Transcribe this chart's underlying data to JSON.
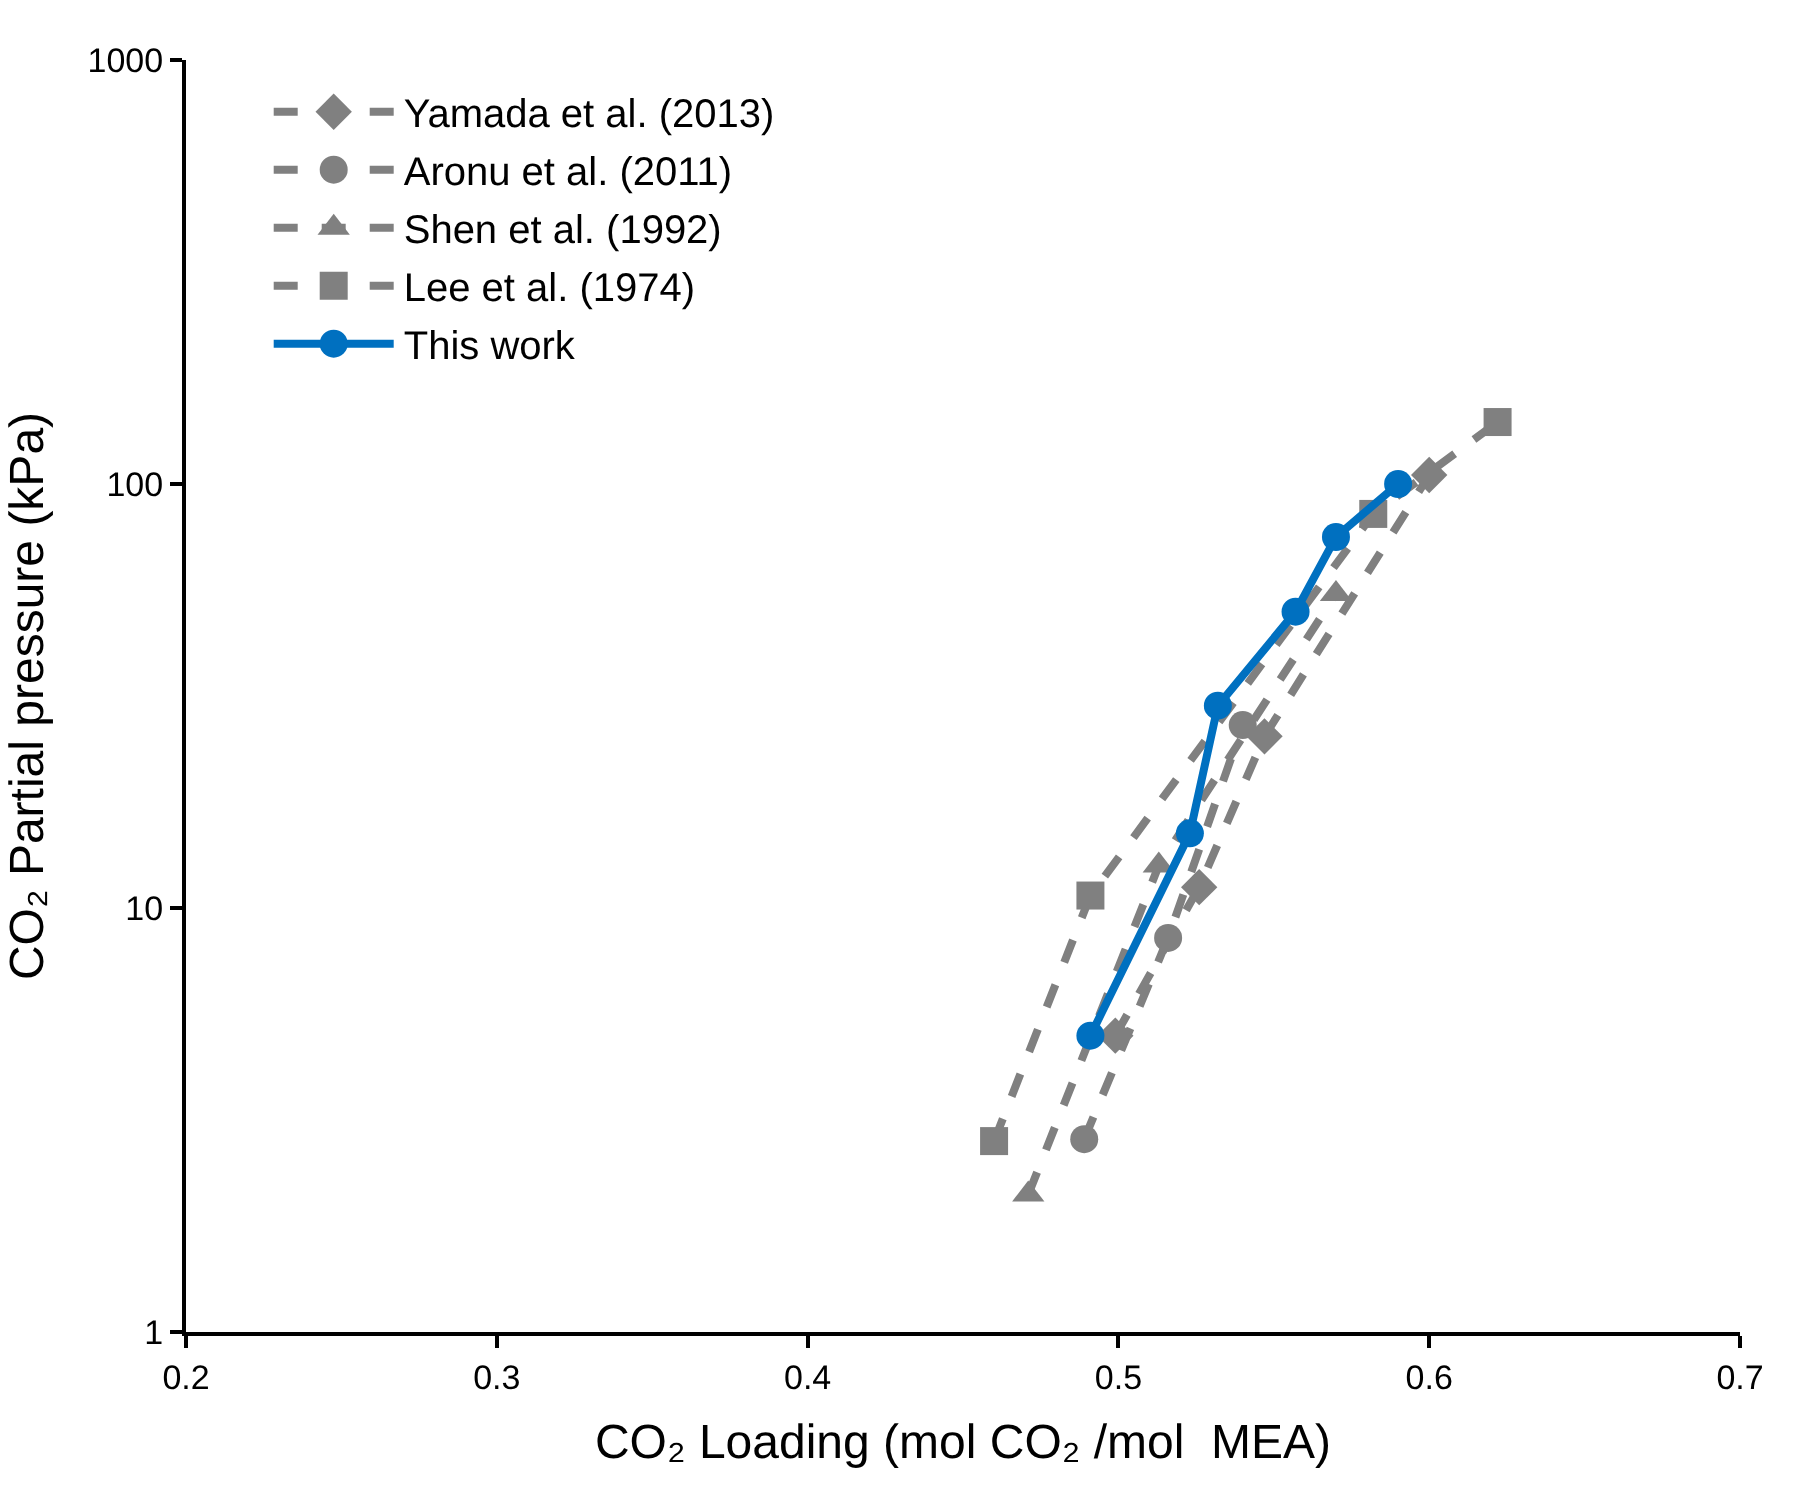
{
  "chart_data": {
    "type": "line",
    "xlabel": "CO₂ Loading (mol CO₂ /mol  MEA)",
    "ylabel": "CO₂ Partial pressure (kPa)",
    "log": "y",
    "legend": "top left",
    "xlim": [
      0.2,
      0.7
    ],
    "xticks": [
      0.2,
      0.3,
      0.4,
      0.5,
      0.6,
      0.7
    ],
    "ylim": [
      1,
      1000
    ],
    "yticks": [
      1,
      10,
      100,
      1000
    ],
    "series": [
      {
        "name": "Yamada et al. (2013)",
        "color": "#808080",
        "marker": "diamond",
        "line_style": "dashed",
        "x": [
          0.499,
          0.526,
          0.547,
          0.6
        ],
        "values": [
          5.0,
          11.2,
          25.4,
          105
        ]
      },
      {
        "name": "Aronu et al. (2011)",
        "color": "#808080",
        "marker": "circle",
        "line_style": "dashed",
        "x": [
          0.489,
          0.516,
          0.54
        ],
        "values": [
          2.85,
          8.5,
          27
        ]
      },
      {
        "name": "Shen et al. (1992)",
        "color": "#808080",
        "marker": "triangle",
        "line_style": "dashed",
        "x": [
          0.471,
          0.513,
          0.57
        ],
        "values": [
          2.11,
          12.6,
          55
        ]
      },
      {
        "name": "Lee et al. (1974)",
        "color": "#808080",
        "marker": "square",
        "line_style": "dashed",
        "x": [
          0.46,
          0.491,
          0.582,
          0.622
        ],
        "values": [
          2.82,
          10.7,
          85,
          140
        ]
      },
      {
        "name": "This work",
        "color": "#0070c0",
        "marker": "circle",
        "line_style": "solid",
        "x": [
          0.491,
          0.523,
          0.532,
          0.557,
          0.57,
          0.59
        ],
        "values": [
          5.0,
          15,
          30,
          50,
          75,
          100
        ]
      }
    ]
  }
}
